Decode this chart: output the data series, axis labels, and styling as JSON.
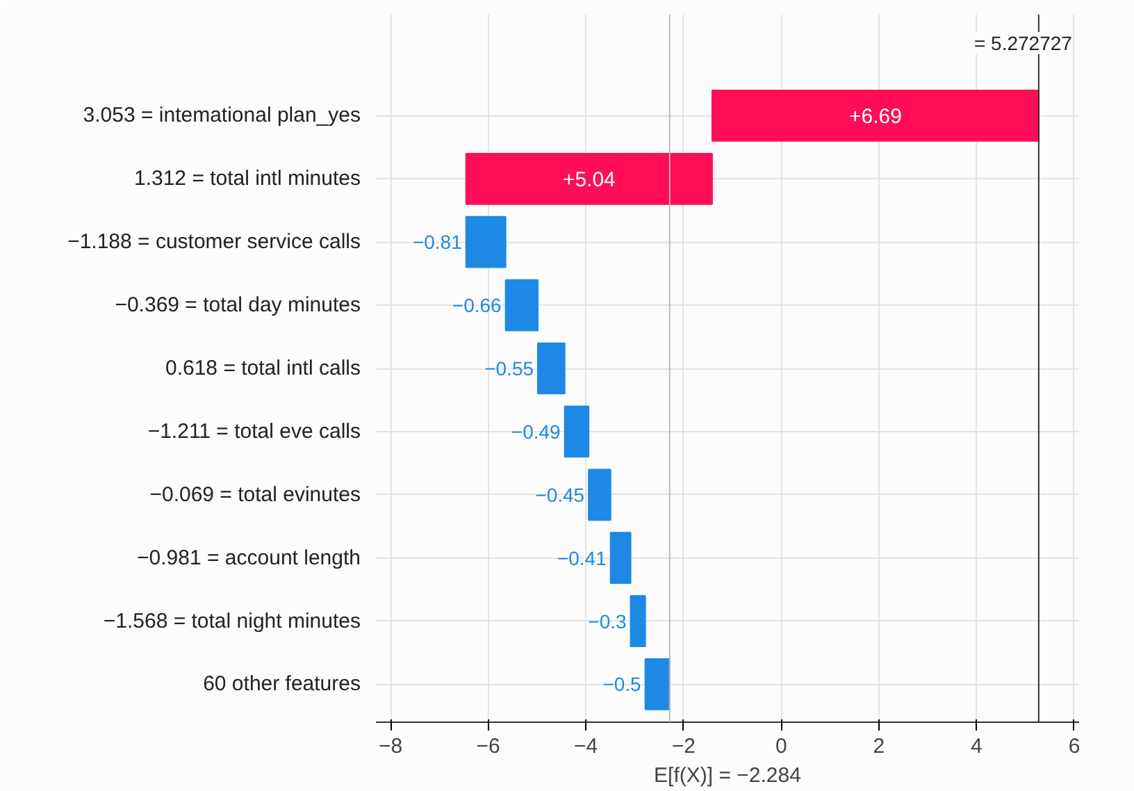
{
  "chart_data": {
    "type": "bar",
    "orientation": "horizontal",
    "xlabel": "E[f(X)] = −2.284",
    "categories": [
      "3.053 = intemational plan_yes",
      "1.312 = total intl minutes",
      "−1.188 = customer service calls",
      "−0.369 = total day minutes",
      "0.618 = total intl calls",
      "−1.211 = total eve calls",
      "−0.069 = total evinutes",
      "−0.981 = account length",
      "−1.568 = total night minutes",
      "60 other features"
    ],
    "values": [
      6.69,
      5.04,
      -0.81,
      -0.66,
      -0.55,
      -0.49,
      -0.45,
      -0.41,
      -0.3,
      -0.5
    ],
    "base": [
      -1.414,
      -6.454,
      -5.644,
      -4.984,
      -4.434,
      -3.944,
      -3.494,
      -3.084,
      -2.784,
      -2.284
    ],
    "colors": [
      "#ff0d57",
      "#ff0d57",
      "#1e88e5",
      "#1e88e5",
      "#1e88e5",
      "#1e88e5",
      "#1e88e5",
      "#1e88e5",
      "#1e88e5",
      "#1e88e5"
    ],
    "value_labels": [
      "+6.69",
      "+5.04",
      "−0.81",
      "−0.66",
      "−0.55",
      "−0.49",
      "−0.45",
      "−0.41",
      "−0.3",
      "−0.5"
    ],
    "xlim": [
      -8.3,
      6.1
    ],
    "xticks": [
      {
        "value": -8,
        "label": "−8"
      },
      {
        "value": -6,
        "label": "−6"
      },
      {
        "value": -4,
        "label": "−4"
      },
      {
        "value": -2,
        "label": "−2"
      },
      0,
      2,
      4,
      6
    ],
    "ref_lines": [
      {
        "axis": "x",
        "value": -2.284,
        "color": "#bbbbbb"
      },
      {
        "axis": "x",
        "value": 5.272727,
        "label": "= 5.272727",
        "color": "#333333"
      }
    ],
    "grid": true
  }
}
